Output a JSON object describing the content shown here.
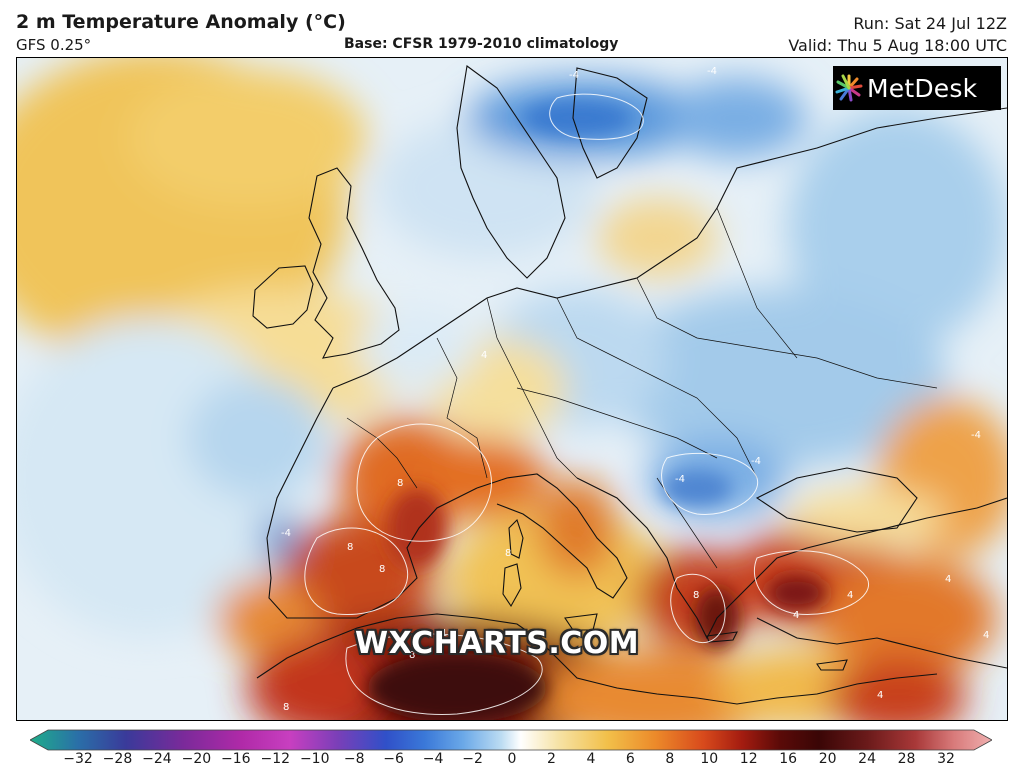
{
  "header": {
    "title": "2 m Temperature Anomaly (°C)",
    "model": "GFS 0.25°",
    "base": "Base: CFSR 1979-2010 climatology",
    "run": "Run: Sat 24 Jul 12Z",
    "valid": "Valid: Thu 5 Aug 18:00 UTC"
  },
  "logo": {
    "text": "MetDesk",
    "icon": "metdesk-starburst-icon"
  },
  "watermark": "WXCHARTS.COM",
  "contour_labels": [
    "-4",
    "-4",
    "-4",
    "-4",
    "-4",
    "-4",
    "4",
    "4",
    "4",
    "4",
    "4",
    "8",
    "8",
    "8",
    "8",
    "8",
    "8",
    "12",
    "8",
    "4"
  ],
  "colorbar": {
    "ticks": [
      "−32",
      "−28",
      "−24",
      "−20",
      "−16",
      "−12",
      "−10",
      "−8",
      "−6",
      "−4",
      "−2",
      "0",
      "2",
      "4",
      "6",
      "8",
      "10",
      "12",
      "16",
      "20",
      "24",
      "28",
      "32"
    ],
    "colors": [
      "#1fae8a",
      "#2a6fa8",
      "#3a3a9a",
      "#7b2a9a",
      "#b02aa8",
      "#c83fc0",
      "#7a3fb8",
      "#3050c8",
      "#3a78d8",
      "#6aa8e8",
      "#bcdcf2",
      "#ffffff",
      "#f6e2a4",
      "#f2c04a",
      "#ec8a2a",
      "#d84a1c",
      "#a41c10",
      "#5a0a08",
      "#3a0606",
      "#6a1a1a",
      "#a83838",
      "#d87a7a",
      "#f0b0b0"
    ]
  },
  "map_colors": {
    "ocean_neutral": "#e8f1f8",
    "cool": "#a9cfec",
    "cold": "#4d8fd6",
    "warm_light": "#f7e0a0",
    "warm": "#f0bd4e",
    "hot": "#e37424",
    "very_hot": "#c0341a",
    "extreme": "#5e0c0a"
  }
}
